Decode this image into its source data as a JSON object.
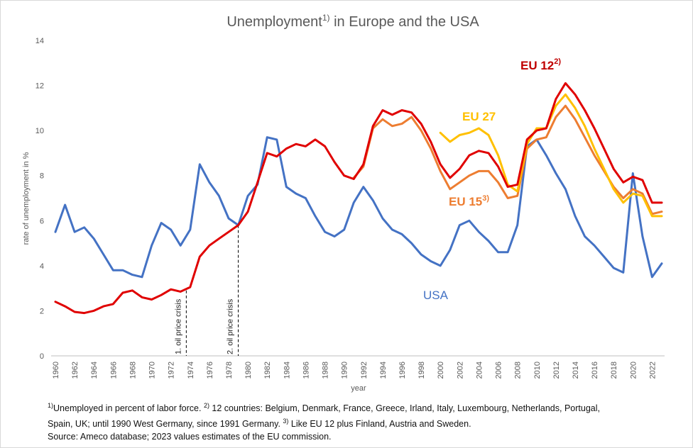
{
  "chart_data": {
    "type": "line",
    "title": "Unemployment",
    "title_sup": "1)",
    "title_rest": " in Europe and the USA",
    "xlabel": "year",
    "ylabel": "rate of unemployment in %",
    "xlim": [
      1960,
      2023
    ],
    "ylim": [
      0,
      14
    ],
    "yticks": [
      0,
      2,
      4,
      6,
      8,
      10,
      12,
      14
    ],
    "xticks": [
      1960,
      1962,
      1964,
      1966,
      1968,
      1970,
      1972,
      1974,
      1976,
      1978,
      1980,
      1982,
      1984,
      1986,
      1988,
      1990,
      1992,
      1994,
      1996,
      1998,
      2000,
      2002,
      2004,
      2006,
      2008,
      2010,
      2012,
      2014,
      2016,
      2018,
      2020,
      2022
    ],
    "grid": false,
    "series": [
      {
        "name": "USA",
        "color": "#4472c4",
        "x": [
          1960,
          1961,
          1962,
          1963,
          1964,
          1965,
          1966,
          1967,
          1968,
          1969,
          1970,
          1971,
          1972,
          1973,
          1974,
          1975,
          1976,
          1977,
          1978,
          1979,
          1980,
          1981,
          1982,
          1983,
          1984,
          1985,
          1986,
          1987,
          1988,
          1989,
          1990,
          1991,
          1992,
          1993,
          1994,
          1995,
          1996,
          1997,
          1998,
          1999,
          2000,
          2001,
          2002,
          2003,
          2004,
          2005,
          2006,
          2007,
          2008,
          2009,
          2010,
          2011,
          2012,
          2013,
          2014,
          2015,
          2016,
          2017,
          2018,
          2019,
          2020,
          2021,
          2022,
          2023
        ],
        "values": [
          5.5,
          6.7,
          5.5,
          5.7,
          5.2,
          4.5,
          3.8,
          3.8,
          3.6,
          3.5,
          4.9,
          5.9,
          5.6,
          4.9,
          5.6,
          8.5,
          7.7,
          7.1,
          6.1,
          5.8,
          7.1,
          7.6,
          9.7,
          9.6,
          7.5,
          7.2,
          7.0,
          6.2,
          5.5,
          5.3,
          5.6,
          6.8,
          7.5,
          6.9,
          6.1,
          5.6,
          5.4,
          5.0,
          4.5,
          4.2,
          4.0,
          4.7,
          5.8,
          6.0,
          5.5,
          5.1,
          4.6,
          4.6,
          5.8,
          9.3,
          9.6,
          8.9,
          8.1,
          7.4,
          6.2,
          5.3,
          4.9,
          4.4,
          3.9,
          3.7,
          8.1,
          5.3,
          3.5,
          4.1
        ]
      },
      {
        "name": "EU 12",
        "name_sup": "2)",
        "color": "#e00000",
        "x": [
          1960,
          1961,
          1962,
          1963,
          1964,
          1965,
          1966,
          1967,
          1968,
          1969,
          1970,
          1971,
          1972,
          1973,
          1974,
          1975,
          1976,
          1977,
          1978,
          1979,
          1980,
          1981,
          1982,
          1983,
          1984,
          1985,
          1986,
          1987,
          1988,
          1989,
          1990,
          1991,
          1992,
          1993,
          1994,
          1995,
          1996,
          1997,
          1998,
          1999,
          2000,
          2001,
          2002,
          2003,
          2004,
          2005,
          2006,
          2007,
          2008,
          2009,
          2010,
          2011,
          2012,
          2013,
          2014,
          2015,
          2016,
          2017,
          2018,
          2019,
          2020,
          2021,
          2022,
          2023
        ],
        "values": [
          2.4,
          2.2,
          1.95,
          1.9,
          2.0,
          2.2,
          2.3,
          2.8,
          2.9,
          2.6,
          2.5,
          2.7,
          2.95,
          2.85,
          3.05,
          4.4,
          4.9,
          5.2,
          5.5,
          5.8,
          6.4,
          7.7,
          9.0,
          8.85,
          9.2,
          9.4,
          9.3,
          9.6,
          9.3,
          8.6,
          8.0,
          7.85,
          8.5,
          10.2,
          10.9,
          10.7,
          10.9,
          10.8,
          10.3,
          9.5,
          8.5,
          7.9,
          8.3,
          8.9,
          9.1,
          9.0,
          8.4,
          7.5,
          7.6,
          9.6,
          10.0,
          10.1,
          11.4,
          12.1,
          11.6,
          10.9,
          10.1,
          9.2,
          8.3,
          7.7,
          7.95,
          7.8,
          6.8,
          6.8
        ]
      },
      {
        "name": "EU 15",
        "name_sup": "3)",
        "color": "#ed7d31",
        "x": [
          1991,
          1992,
          1993,
          1994,
          1995,
          1996,
          1997,
          1998,
          1999,
          2000,
          2001,
          2002,
          2003,
          2004,
          2005,
          2006,
          2007,
          2008,
          2009,
          2010,
          2011,
          2012,
          2013,
          2014,
          2015,
          2016,
          2017,
          2018,
          2019,
          2020,
          2021,
          2022,
          2023
        ],
        "values": [
          7.9,
          8.4,
          10.1,
          10.5,
          10.2,
          10.3,
          10.6,
          10.0,
          9.2,
          8.2,
          7.4,
          7.7,
          8.0,
          8.2,
          8.2,
          7.7,
          7.0,
          7.1,
          9.2,
          9.6,
          9.7,
          10.6,
          11.1,
          10.5,
          9.7,
          8.9,
          8.2,
          7.5,
          7.0,
          7.4,
          7.2,
          6.3,
          6.4
        ]
      },
      {
        "name": "EU 27",
        "color": "#ffc000",
        "x": [
          2000,
          2001,
          2002,
          2003,
          2004,
          2005,
          2006,
          2007,
          2008,
          2009,
          2010,
          2011,
          2012,
          2013,
          2014,
          2015,
          2016,
          2017,
          2018,
          2019,
          2020,
          2021,
          2022,
          2023
        ],
        "values": [
          9.9,
          9.5,
          9.8,
          9.9,
          10.1,
          9.8,
          8.9,
          7.6,
          7.3,
          9.4,
          10.1,
          10.1,
          11.1,
          11.6,
          11.0,
          10.2,
          9.2,
          8.3,
          7.4,
          6.8,
          7.2,
          7.1,
          6.2,
          6.2
        ]
      }
    ],
    "annotations": [
      {
        "text": "1. oil price crisis",
        "x": 1973.6,
        "y": 2.9
      },
      {
        "text": "2. oil price crisis",
        "x": 1979,
        "y": 5.8
      }
    ]
  },
  "footnotes": {
    "line1_sup": "1)",
    "line1_a": "Unemployed in percent of labor force. ",
    "line1_sup2": "2)",
    "line1_b": " 12 countries: Belgium, Denmark, France, Greece, Irland, Italy, Luxembourg, Netherlands, Portugal,",
    "line2_a": "Spain, UK; until 1990 West Germany, since 1991 Germany. ",
    "line2_sup": "3)",
    "line2_b": " Like EU 12 plus Finland, Austria and Sweden.",
    "line3": "Source: Ameco database; 2023  values estimates of the EU commission."
  }
}
